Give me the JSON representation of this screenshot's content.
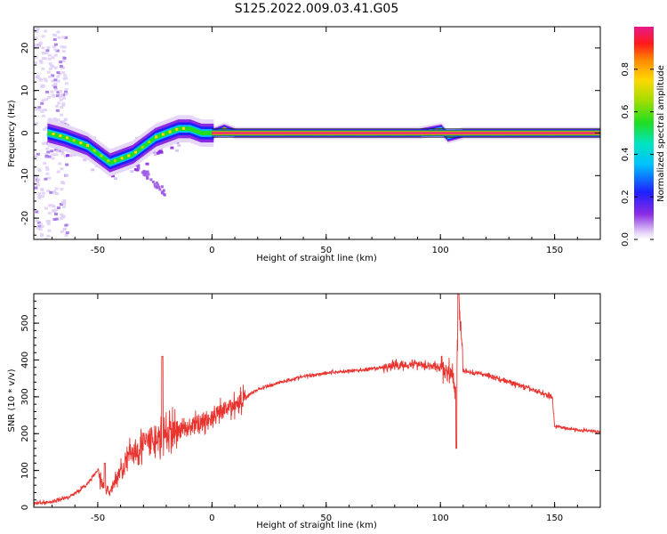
{
  "figure_title": "S125.2022.009.03.41.G05",
  "colors": {
    "snr_line": "#e8332e",
    "frame": "#000000",
    "background": "#ffffff"
  },
  "chart_data": [
    {
      "type": "heatmap",
      "name": "spectrogram",
      "xlabel": "Height of straight line (km)",
      "ylabel": "Frequency (Hz)",
      "xlim": [
        -78,
        170
      ],
      "ylim": [
        -25,
        25
      ],
      "xticks": [
        -50,
        0,
        50,
        100,
        150
      ],
      "yticks": [
        -20,
        -10,
        0,
        10,
        20
      ],
      "colorbar": {
        "label": "Normalized spectral amplitude",
        "range": [
          0,
          1
        ],
        "ticks": [
          0.0,
          0.2,
          0.4,
          0.6,
          0.8
        ],
        "colormap": "rainbow (white-purple-blue-cyan-green-yellow-orange-red-magenta)"
      },
      "ridge": {
        "description": "dominant frequency track vs height",
        "x": [
          -72,
          -65,
          -60,
          -55,
          -50,
          -45,
          -40,
          -35,
          -30,
          -25,
          -20,
          -15,
          -10,
          -5,
          0,
          5,
          10,
          20,
          40,
          60,
          70,
          75,
          80,
          90,
          100,
          103,
          110,
          130,
          150,
          170
        ],
        "y": [
          0,
          -1,
          -2,
          -3,
          -5,
          -7,
          -6,
          -5,
          -3,
          -1,
          0,
          1,
          1,
          0,
          0,
          1,
          0,
          0,
          0,
          0,
          0,
          0,
          0,
          0,
          1,
          -1,
          0,
          0,
          0,
          0
        ]
      }
    },
    {
      "type": "line",
      "name": "snr",
      "xlabel": "Height of straight line (km)",
      "ylabel": "SNR (10 * v/v)",
      "xlim": [
        -78,
        170
      ],
      "ylim": [
        0,
        580
      ],
      "xticks": [
        -50,
        0,
        50,
        100,
        150
      ],
      "yticks": [
        0,
        100,
        200,
        300,
        400,
        500
      ],
      "series": [
        {
          "x": [
            -78,
            -70,
            -62,
            -55,
            -50,
            -48,
            -45,
            -40,
            -35,
            -30,
            -25,
            -20,
            -15,
            -10,
            -5,
            0,
            5,
            10,
            15,
            20,
            30,
            40,
            50,
            60,
            70,
            80,
            90,
            100,
            105,
            107,
            108,
            110,
            120,
            130,
            140,
            149,
            150,
            155,
            160,
            170
          ],
          "y": [
            10,
            15,
            30,
            60,
            100,
            60,
            40,
            100,
            150,
            170,
            180,
            200,
            210,
            220,
            230,
            240,
            260,
            280,
            300,
            320,
            340,
            355,
            365,
            370,
            375,
            385,
            390,
            380,
            360,
            300,
            580,
            370,
            360,
            340,
            320,
            300,
            220,
            215,
            210,
            205
          ]
        }
      ]
    }
  ]
}
